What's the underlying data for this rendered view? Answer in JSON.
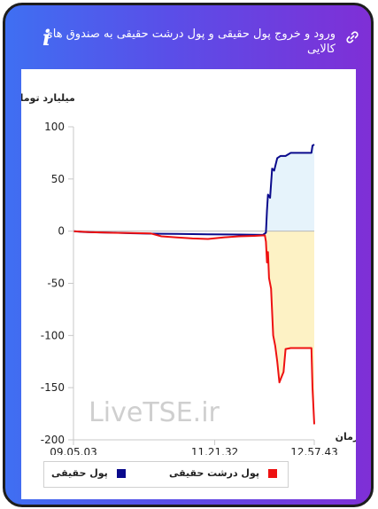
{
  "header": {
    "title": "ورود و خروج پول حقیقی و پول درشت حقیقی به صندوق های کالایی",
    "info_icon": "i"
  },
  "watermark": "LiveTSE.ir",
  "colors": {
    "real_money": "#0a0a8c",
    "big_real_money": "#ee1111"
  },
  "chart_data": {
    "type": "line",
    "ylabel": "میلیارد تومان",
    "xlabel": "زمان",
    "ylim": [
      -200,
      100
    ],
    "yticks": [
      100,
      50,
      0,
      -50,
      -100,
      -150,
      -200
    ],
    "xlim": [
      "09.05.03",
      "12.57.43"
    ],
    "xticks": [
      "09.05.03",
      "11.21.32",
      "12.57.43"
    ],
    "grid": false,
    "legend": "bottom",
    "series": [
      {
        "name": "پول حقیقی",
        "fill": "#e6f3fb",
        "points": [
          [
            "09.05.03",
            0
          ],
          [
            "09.15.00",
            -0.8
          ],
          [
            "09.30.00",
            -1.2
          ],
          [
            "09.45.00",
            -1.5
          ],
          [
            "10.00.00",
            -2.0
          ],
          [
            "10.15.00",
            -2.3
          ],
          [
            "10.30.00",
            -2.5
          ],
          [
            "10.45.00",
            -2.6
          ],
          [
            "11.00.00",
            -2.8
          ],
          [
            "11.15.00",
            -3.0
          ],
          [
            "11.30.00",
            -3.2
          ],
          [
            "11.45.00",
            -3.3
          ],
          [
            "12.00.00",
            -3.5
          ],
          [
            "12.08.00",
            -3.6
          ],
          [
            "12.11.00",
            -1.5
          ],
          [
            "12.12.00",
            20
          ],
          [
            "12.13.00",
            35
          ],
          [
            "12.15.00",
            32
          ],
          [
            "12.17.00",
            60
          ],
          [
            "12.19.00",
            58
          ],
          [
            "12.22.00",
            70
          ],
          [
            "12.25.00",
            72
          ],
          [
            "12.30.00",
            72
          ],
          [
            "12.35.00",
            75
          ],
          [
            "12.40.00",
            75
          ],
          [
            "12.45.00",
            75
          ],
          [
            "12.50.00",
            75
          ],
          [
            "12.55.00",
            75
          ],
          [
            "12.56.00",
            82
          ],
          [
            "12.57.43",
            83
          ]
        ]
      },
      {
        "name": "پول درشت حقیقی",
        "fill": "#fdf2c5",
        "points": [
          [
            "09.05.03",
            0
          ],
          [
            "09.20.00",
            -1.0
          ],
          [
            "09.40.00",
            -1.5
          ],
          [
            "10.00.00",
            -1.8
          ],
          [
            "10.20.00",
            -2.2
          ],
          [
            "10.30.00",
            -5
          ],
          [
            "10.45.00",
            -6
          ],
          [
            "11.00.00",
            -7
          ],
          [
            "11.15.00",
            -7.5
          ],
          [
            "11.30.00",
            -6
          ],
          [
            "11.45.00",
            -5
          ],
          [
            "12.00.00",
            -4.5
          ],
          [
            "12.10.00",
            -4
          ],
          [
            "12.11.00",
            -10
          ],
          [
            "12.12.00",
            -30
          ],
          [
            "12.13.00",
            -20
          ],
          [
            "12.14.00",
            -45
          ],
          [
            "12.16.00",
            -55
          ],
          [
            "12.18.00",
            -100
          ],
          [
            "12.20.00",
            -110
          ],
          [
            "12.22.00",
            -125
          ],
          [
            "12.24.00",
            -145
          ],
          [
            "12.26.00",
            -140
          ],
          [
            "12.28.00",
            -135
          ],
          [
            "12.30.00",
            -113
          ],
          [
            "12.35.00",
            -112
          ],
          [
            "12.40.00",
            -112
          ],
          [
            "12.45.00",
            -112
          ],
          [
            "12.50.00",
            -112
          ],
          [
            "12.55.00",
            -112
          ],
          [
            "12.56.00",
            -150
          ],
          [
            "12.57.43",
            -185
          ]
        ]
      }
    ]
  }
}
